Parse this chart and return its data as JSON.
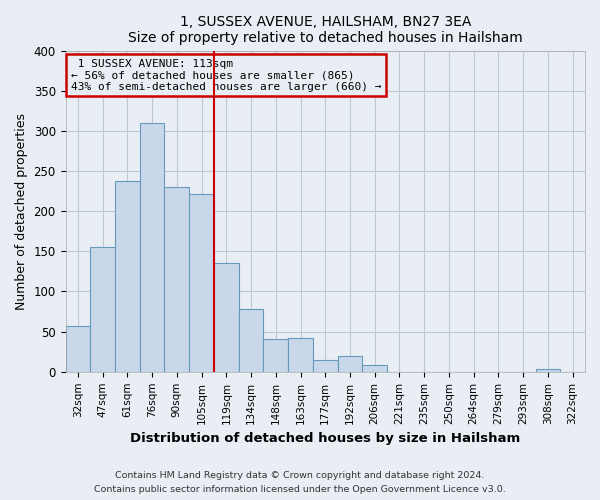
{
  "title": "1, SUSSEX AVENUE, HAILSHAM, BN27 3EA",
  "subtitle": "Size of property relative to detached houses in Hailsham",
  "xlabel": "Distribution of detached houses by size in Hailsham",
  "ylabel": "Number of detached properties",
  "categories": [
    "32sqm",
    "47sqm",
    "61sqm",
    "76sqm",
    "90sqm",
    "105sqm",
    "119sqm",
    "134sqm",
    "148sqm",
    "163sqm",
    "177sqm",
    "192sqm",
    "206sqm",
    "221sqm",
    "235sqm",
    "250sqm",
    "264sqm",
    "279sqm",
    "293sqm",
    "308sqm",
    "322sqm"
  ],
  "values": [
    57,
    155,
    237,
    310,
    230,
    222,
    135,
    78,
    41,
    42,
    15,
    20,
    8,
    0,
    0,
    0,
    0,
    0,
    0,
    4,
    0
  ],
  "bar_color": "#c8d8ea",
  "bar_edge_color": "#6699bb",
  "annotation_box_color": "#cc0000",
  "annotation_line_color": "#cc0000",
  "property_label": "1 SUSSEX AVENUE: 113sqm",
  "smaller_pct": 56,
  "smaller_count": 865,
  "larger_pct": 43,
  "larger_count": 660,
  "vline_bin_index": 6,
  "ylim": [
    0,
    400
  ],
  "yticks": [
    0,
    50,
    100,
    150,
    200,
    250,
    300,
    350,
    400
  ],
  "footer1": "Contains HM Land Registry data © Crown copyright and database right 2024.",
  "footer2": "Contains public sector information licensed under the Open Government Licence v3.0.",
  "bg_color": "#e8eef4",
  "plot_bg_color": "#e8eef4",
  "grid_color": "#c0c8d0"
}
